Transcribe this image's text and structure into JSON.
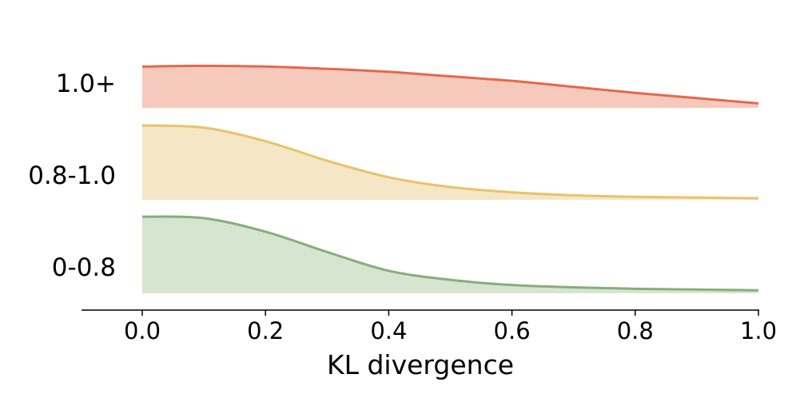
{
  "chart_data": {
    "type": "area",
    "subtype": "ridgeline-density",
    "title": "",
    "xlabel": "KL divergence",
    "ylabel": "",
    "xlim": [
      -0.1,
      1.0
    ],
    "xticks": [
      "0.0",
      "0.2",
      "0.4",
      "0.6",
      "0.8",
      "1.0"
    ],
    "x": [
      0.0,
      0.1,
      0.2,
      0.3,
      0.4,
      0.5,
      0.6,
      0.7,
      0.8,
      0.9,
      1.0
    ],
    "series": [
      {
        "name": "1.0+",
        "line_color": "#e5684b",
        "fill_color": "#f6c9bd",
        "values": [
          0.55,
          0.56,
          0.55,
          0.52,
          0.48,
          0.42,
          0.36,
          0.28,
          0.2,
          0.13,
          0.06
        ]
      },
      {
        "name": "0.8-1.0",
        "line_color": "#e8c36a",
        "fill_color": "#f5e6c6",
        "values": [
          0.99,
          0.96,
          0.78,
          0.52,
          0.3,
          0.17,
          0.1,
          0.06,
          0.04,
          0.03,
          0.02
        ]
      },
      {
        "name": "0-0.8",
        "line_color": "#88ad7a",
        "fill_color": "#d5e5cf",
        "values": [
          1.02,
          1.0,
          0.82,
          0.55,
          0.3,
          0.18,
          0.11,
          0.08,
          0.06,
          0.05,
          0.04
        ]
      }
    ]
  }
}
